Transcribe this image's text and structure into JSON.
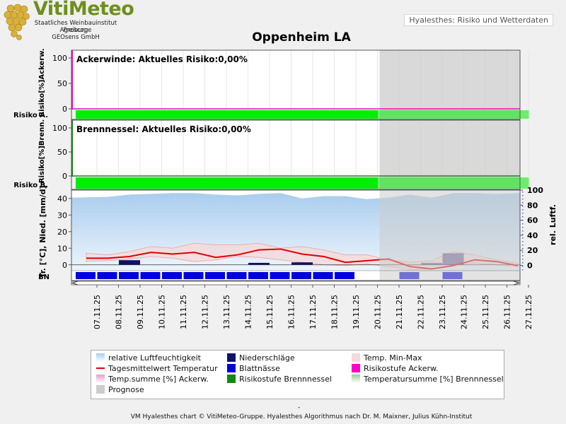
{
  "header": {
    "logo_title": "VitiMeteo",
    "logo_lines": [
      "Staatliches Weinbauinstitut Freiburg",
      "Agroscope",
      "GEOsens GmbH"
    ],
    "app_label": "Hyalesthes: Risiko und Wetterdaten",
    "page_title": "Oppenheim LA"
  },
  "colors": {
    "humidity": "#a9cdee",
    "precip": "#10106e",
    "temp_minmax": "#f5dada",
    "temp_mean": "#e00000",
    "leaf_wetness": "#0000e0",
    "risk_ackerw": "#ff00cc",
    "tempsum_ackerw": "#ee99cc",
    "risk_brenn": "#118811",
    "tempsum_brenn": "#99cc99",
    "prognose": "#cccccc",
    "risk_bar": "#00ee00"
  },
  "chart_data": {
    "type": "line",
    "x": [
      "07.11.25",
      "08.11.25",
      "09.11.25",
      "10.11.25",
      "11.11.25",
      "12.11.25",
      "13.11.25",
      "14.11.25",
      "15.11.25",
      "16.11.25",
      "17.11.25",
      "18.11.25",
      "19.11.25",
      "20.11.25",
      "21.11.25",
      "22.11.25",
      "23.11.25",
      "24.11.25",
      "25.11.25",
      "26.11.25",
      "27.11.25"
    ],
    "prognose_from": "20.11.25",
    "panels": [
      {
        "name": "ackerwinde",
        "annotation": "Ackerwinde: Aktuelles Risiko:0,00%",
        "ylabel": "Risiko[%]Ackerw.",
        "ylim": [
          0,
          100
        ],
        "yticks": [
          0,
          50,
          100
        ],
        "risk_label": "Risiko A.",
        "risk_values": [
          0,
          0,
          0,
          0,
          0,
          0,
          0,
          0,
          0,
          0,
          0,
          0,
          0,
          0,
          0,
          0,
          0,
          0,
          0,
          0,
          0
        ]
      },
      {
        "name": "brennnessel",
        "annotation": "Brennnessel: Aktuelles Risiko:0,00%",
        "ylabel": "Risiko[%]Brenn.",
        "ylim": [
          0,
          100
        ],
        "yticks": [
          0,
          50,
          100
        ],
        "risk_label": "Risiko B.",
        "risk_values": [
          0,
          0,
          0,
          0,
          0,
          0,
          0,
          0,
          0,
          0,
          0,
          0,
          0,
          0,
          0,
          0,
          0,
          0,
          0,
          0,
          0
        ]
      },
      {
        "name": "weather",
        "ylabel": "Tr. [°C], Nied. [mm/d]",
        "y2label": "rel. Luftf.",
        "ylim": [
          -3.5,
          45
        ],
        "yticks": [
          0,
          10,
          20,
          30,
          40
        ],
        "y2lim": [
          -7,
          100
        ],
        "y2ticks": [
          0,
          20,
          40,
          60,
          80,
          100
        ],
        "bn_label": "BN",
        "series": [
          {
            "name": "relative Luftfeuchtigkeit",
            "axis": "y2",
            "values": [
              90,
              91,
              94,
              95,
              96,
              96,
              94,
              93,
              95,
              96,
              89,
              92,
              92,
              88,
              90,
              94,
              90,
              96,
              96,
              95,
              96
            ]
          },
          {
            "name": "Temp. Min",
            "values": [
              2,
              2.5,
              3.5,
              5,
              4,
              2,
              3,
              5,
              4.5,
              3,
              1.5,
              0,
              -0.5,
              0.5,
              -1,
              -3,
              -2.5,
              0,
              1,
              0,
              -1
            ]
          },
          {
            "name": "Temp. Max",
            "values": [
              7,
              6,
              8,
              11,
              10,
              13,
              12,
              12,
              13,
              10,
              11,
              9,
              6,
              6,
              3,
              1.5,
              2.5,
              8,
              6,
              3,
              1
            ]
          },
          {
            "name": "Tagesmittelwert Temperatur",
            "values": [
              4,
              4,
              5,
              7.5,
              6.5,
              7.5,
              4.5,
              6,
              9,
              9.5,
              6.5,
              5,
              1.5,
              2.5,
              3.5,
              -1,
              -2.5,
              -0.5,
              3,
              2,
              -0.5
            ]
          },
          {
            "name": "Niederschläge",
            "values": [
              0,
              0,
              2.8,
              0,
              0,
              0,
              0,
              0,
              1.2,
              0,
              1.5,
              0,
              0,
              0,
              0,
              0,
              1.2,
              7,
              0,
              0,
              0
            ]
          },
          {
            "name": "Blattnässe",
            "values": [
              1,
              1,
              1,
              1,
              1,
              1,
              1,
              1,
              1,
              1,
              1,
              1,
              1,
              0,
              0,
              1,
              0,
              1,
              0,
              0,
              0
            ]
          }
        ]
      }
    ]
  },
  "legend": {
    "items": [
      {
        "key": "humidity",
        "label": "relative Luftfeuchtigkeit"
      },
      {
        "key": "precip",
        "label": "Niederschläge"
      },
      {
        "key": "temp_minmax",
        "label": "Temp. Min-Max"
      },
      {
        "key": "temp_mean",
        "label": "Tagesmittelwert Temperatur"
      },
      {
        "key": "leaf_wetness",
        "label": "Blattnässe"
      },
      {
        "key": "risk_ackerw",
        "label": "Risikostufe Ackerw."
      },
      {
        "key": "tempsum_ackerw",
        "label": "Temp.summe [%] Ackerw."
      },
      {
        "key": "risk_brenn",
        "label": "Risikostufe Brennnessel"
      },
      {
        "key": "tempsum_brenn",
        "label": "Temperatursumme [%] Brennnessel"
      },
      {
        "key": "prognose",
        "label": "Prognose"
      }
    ]
  },
  "footer": {
    "dash": "-",
    "credits": "VM Hyalesthes chart © VitiMeteo-Gruppe. Hyalesthes Algorithmus nach Dr. M. Maixner, Julius Kühn-Institut"
  }
}
